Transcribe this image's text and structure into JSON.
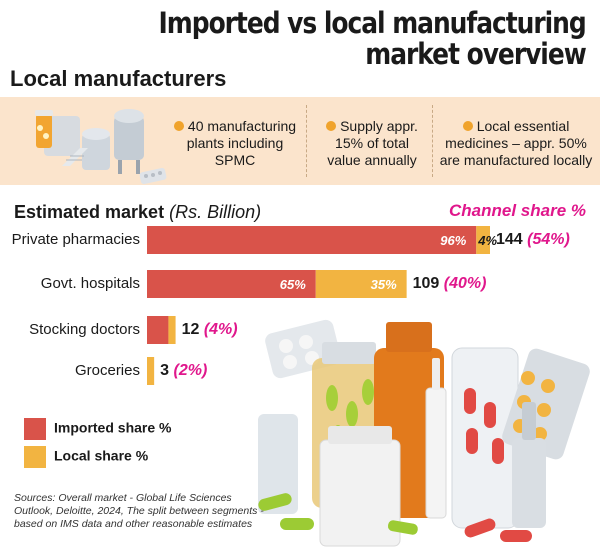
{
  "title": [
    "Imported vs local manufacturing",
    "market overview"
  ],
  "section_title": "Local manufacturers",
  "facts": [
    [
      "40 manufacturing",
      "plants including",
      "SPMC"
    ],
    [
      "Supply appr.",
      "15% of total",
      "value annually"
    ],
    [
      "Local essential",
      "medicines – appr. 50%",
      "are manufactured locally"
    ]
  ],
  "colors": {
    "imported": "#d9534a",
    "local": "#f2b441",
    "accent": "#e0178c",
    "band": "#fbe4cc",
    "bullet": "#f0a32c"
  },
  "chart_data": {
    "type": "bar",
    "orientation": "horizontal",
    "stacked": true,
    "title": "Estimated market",
    "unit": "(Rs. Billion)",
    "share_header": "Channel share %",
    "categories": [
      "Private pharmacies",
      "Govt. hospitals",
      "Stocking doctors",
      "Groceries"
    ],
    "totals": [
      144,
      109,
      12,
      3
    ],
    "channel_share_labels": [
      "(54%)",
      "(40%)",
      "(4%)",
      "(2%)"
    ],
    "series": [
      {
        "name": "Imported share %",
        "shares": [
          96,
          65,
          75,
          0
        ],
        "labels": [
          "96%",
          "65%",
          "",
          ""
        ]
      },
      {
        "name": "Local share %",
        "shares": [
          4,
          35,
          25,
          100
        ],
        "labels": [
          "4%",
          "35%",
          "",
          ""
        ]
      }
    ]
  },
  "source_note": "Sources: Overall market - Global Life Sciences Outlook, Deloitte, 2024, The split between segments -based on IMS data and other reasonable estimates",
  "illustrations": [
    "factory-icon",
    "medicine-bottles-and-pills"
  ]
}
